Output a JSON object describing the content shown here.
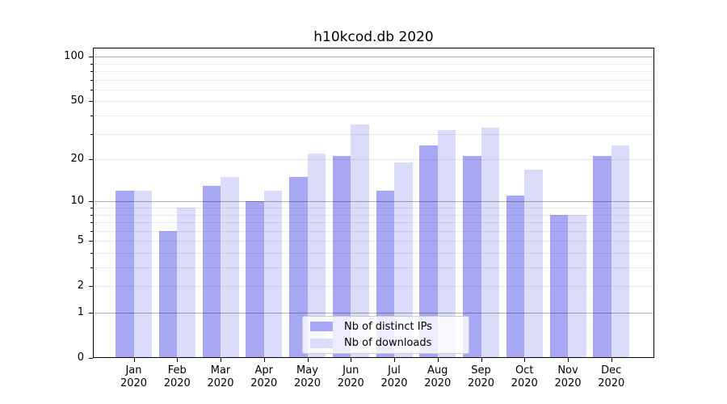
{
  "chart_data": {
    "type": "bar",
    "title": "h10kcod.db 2020",
    "categories": [
      "Jan",
      "Feb",
      "Mar",
      "Apr",
      "May",
      "Jun",
      "Jul",
      "Aug",
      "Sep",
      "Oct",
      "Nov",
      "Dec"
    ],
    "x_tick_second_line": "2020",
    "series": [
      {
        "name": "Nb of distinct IPs",
        "color": "#a7a7f3",
        "values": [
          12,
          6,
          13,
          10,
          15,
          21,
          12,
          25,
          21,
          11,
          8,
          21
        ]
      },
      {
        "name": "Nb of downloads",
        "color": "#dbdbfa",
        "values": [
          12,
          9,
          15,
          12,
          22,
          35,
          19,
          32,
          33,
          17,
          8,
          25
        ]
      }
    ],
    "yscale": "log1p",
    "ylim": [
      0,
      115
    ],
    "yticks_labeled": [
      0,
      1,
      2,
      5,
      10,
      20,
      50,
      100
    ],
    "yticks_minor": [
      3,
      4,
      6,
      7,
      8,
      9,
      30,
      40,
      60,
      70,
      80,
      90
    ],
    "gridlines_major": [
      1,
      10,
      100
    ],
    "gridlines_minor": [
      2,
      3,
      4,
      5,
      6,
      7,
      8,
      9,
      20,
      30,
      40,
      50,
      60,
      70,
      80,
      90
    ],
    "grid": true,
    "legend_position": "lower-center",
    "colors": {
      "axis": "#000000",
      "grid_major": "rgba(0,0,0,0.30)",
      "grid_minor": "rgba(0,0,0,0.08)"
    }
  }
}
